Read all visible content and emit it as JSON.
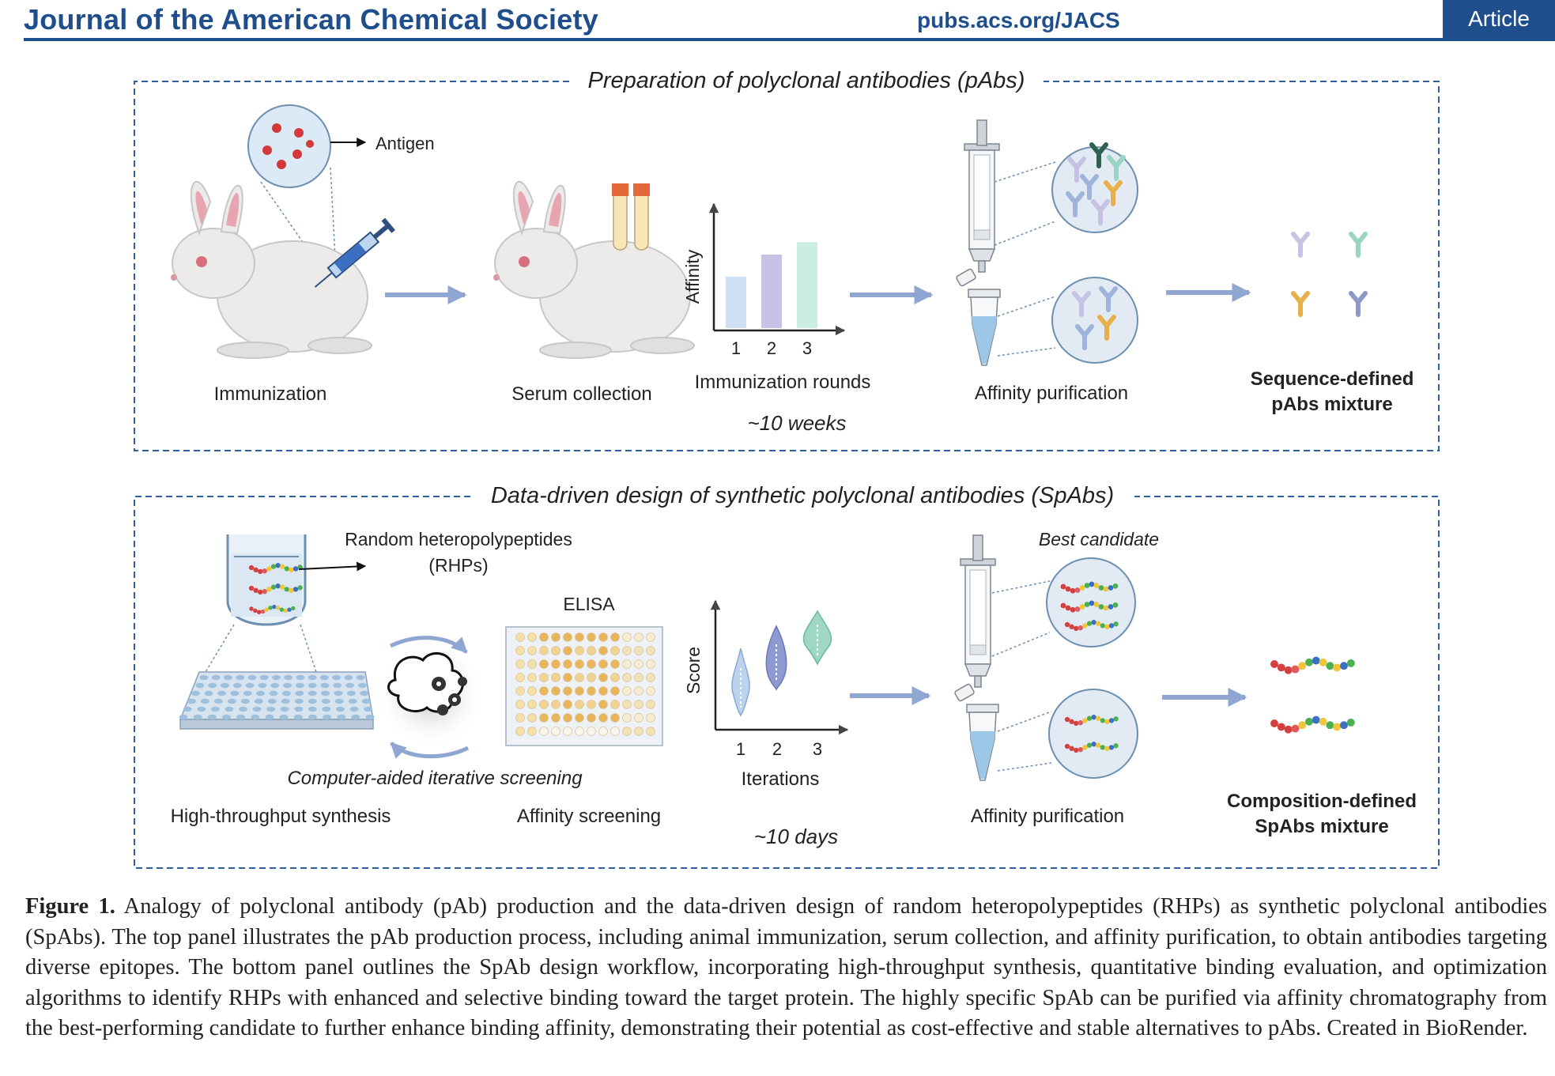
{
  "header": {
    "journal": "Journal of the American Chemical Society",
    "url": "pubs.acs.org/JACS",
    "badge": "Article"
  },
  "top_panel": {
    "title": "Preparation of polyclonal antibodies (pAbs)",
    "antigen_label": "Antigen",
    "steps": {
      "immunization": "Immunization",
      "serum": "Serum collection",
      "rounds": "Immunization rounds",
      "purification": "Affinity purification"
    },
    "axis_y": "Affinity",
    "ticks": [
      "1",
      "2",
      "3"
    ],
    "affinity_levels": [
      0.42,
      0.6,
      0.7
    ],
    "duration": "~10 weeks",
    "result_line1": "Sequence-defined",
    "result_line2": "pAbs mixture"
  },
  "bottom_panel": {
    "title": "Data-driven design of synthetic polyclonal antibodies (SpAbs)",
    "rhp_line1": "Random heteropolypeptides",
    "rhp_line2": "(RHPs)",
    "elisa": "ELISA",
    "axis_y": "Score",
    "axis_x": "Iterations",
    "ticks": [
      "1",
      "2",
      "3"
    ],
    "best_candidate": "Best candidate",
    "screening": "Computer-aided iterative screening",
    "steps": {
      "synthesis": "High-throughput synthesis",
      "screening": "Affinity screening",
      "purification": "Affinity purification"
    },
    "duration": "~10 days",
    "result_line1": "Composition-defined",
    "result_line2": "SpAbs mixture"
  },
  "caption": {
    "label": "Figure 1.",
    "text": " Analogy of polyclonal antibody (pAb) production and the data-driven design of random heteropolypeptides (RHPs) as synthetic polyclonal antibodies (SpAbs). The top panel illustrates the pAb production process, including animal immunization, serum collection, and affinity purification, to obtain antibodies targeting diverse epitopes. The bottom panel outlines the SpAb design workflow, incorporating high-throughput synthesis, quantitative binding evaluation, and optimization algorithms to identify RHPs with enhanced and selective binding toward the target protein. The highly specific SpAb can be purified via affinity chromatography from the best-performing candidate to further enhance binding affinity, demonstrating their potential as cost-effective and stable alternatives to pAbs. Created in BioRender."
  },
  "colors": {
    "journal_blue": "#1f4e8c",
    "panel_border": "#2f5f9e",
    "arrow": "#8fa6d2",
    "antigen_red": "#d23a3a"
  },
  "icons": [
    "rabbit-icon",
    "syringe-icon",
    "blood-tube-icon",
    "spin-column-icon",
    "microtube-icon",
    "antibody-icon",
    "well-plate-icon",
    "brain-gears-icon",
    "elisa-plate-icon",
    "peptide-chain-icon"
  ]
}
